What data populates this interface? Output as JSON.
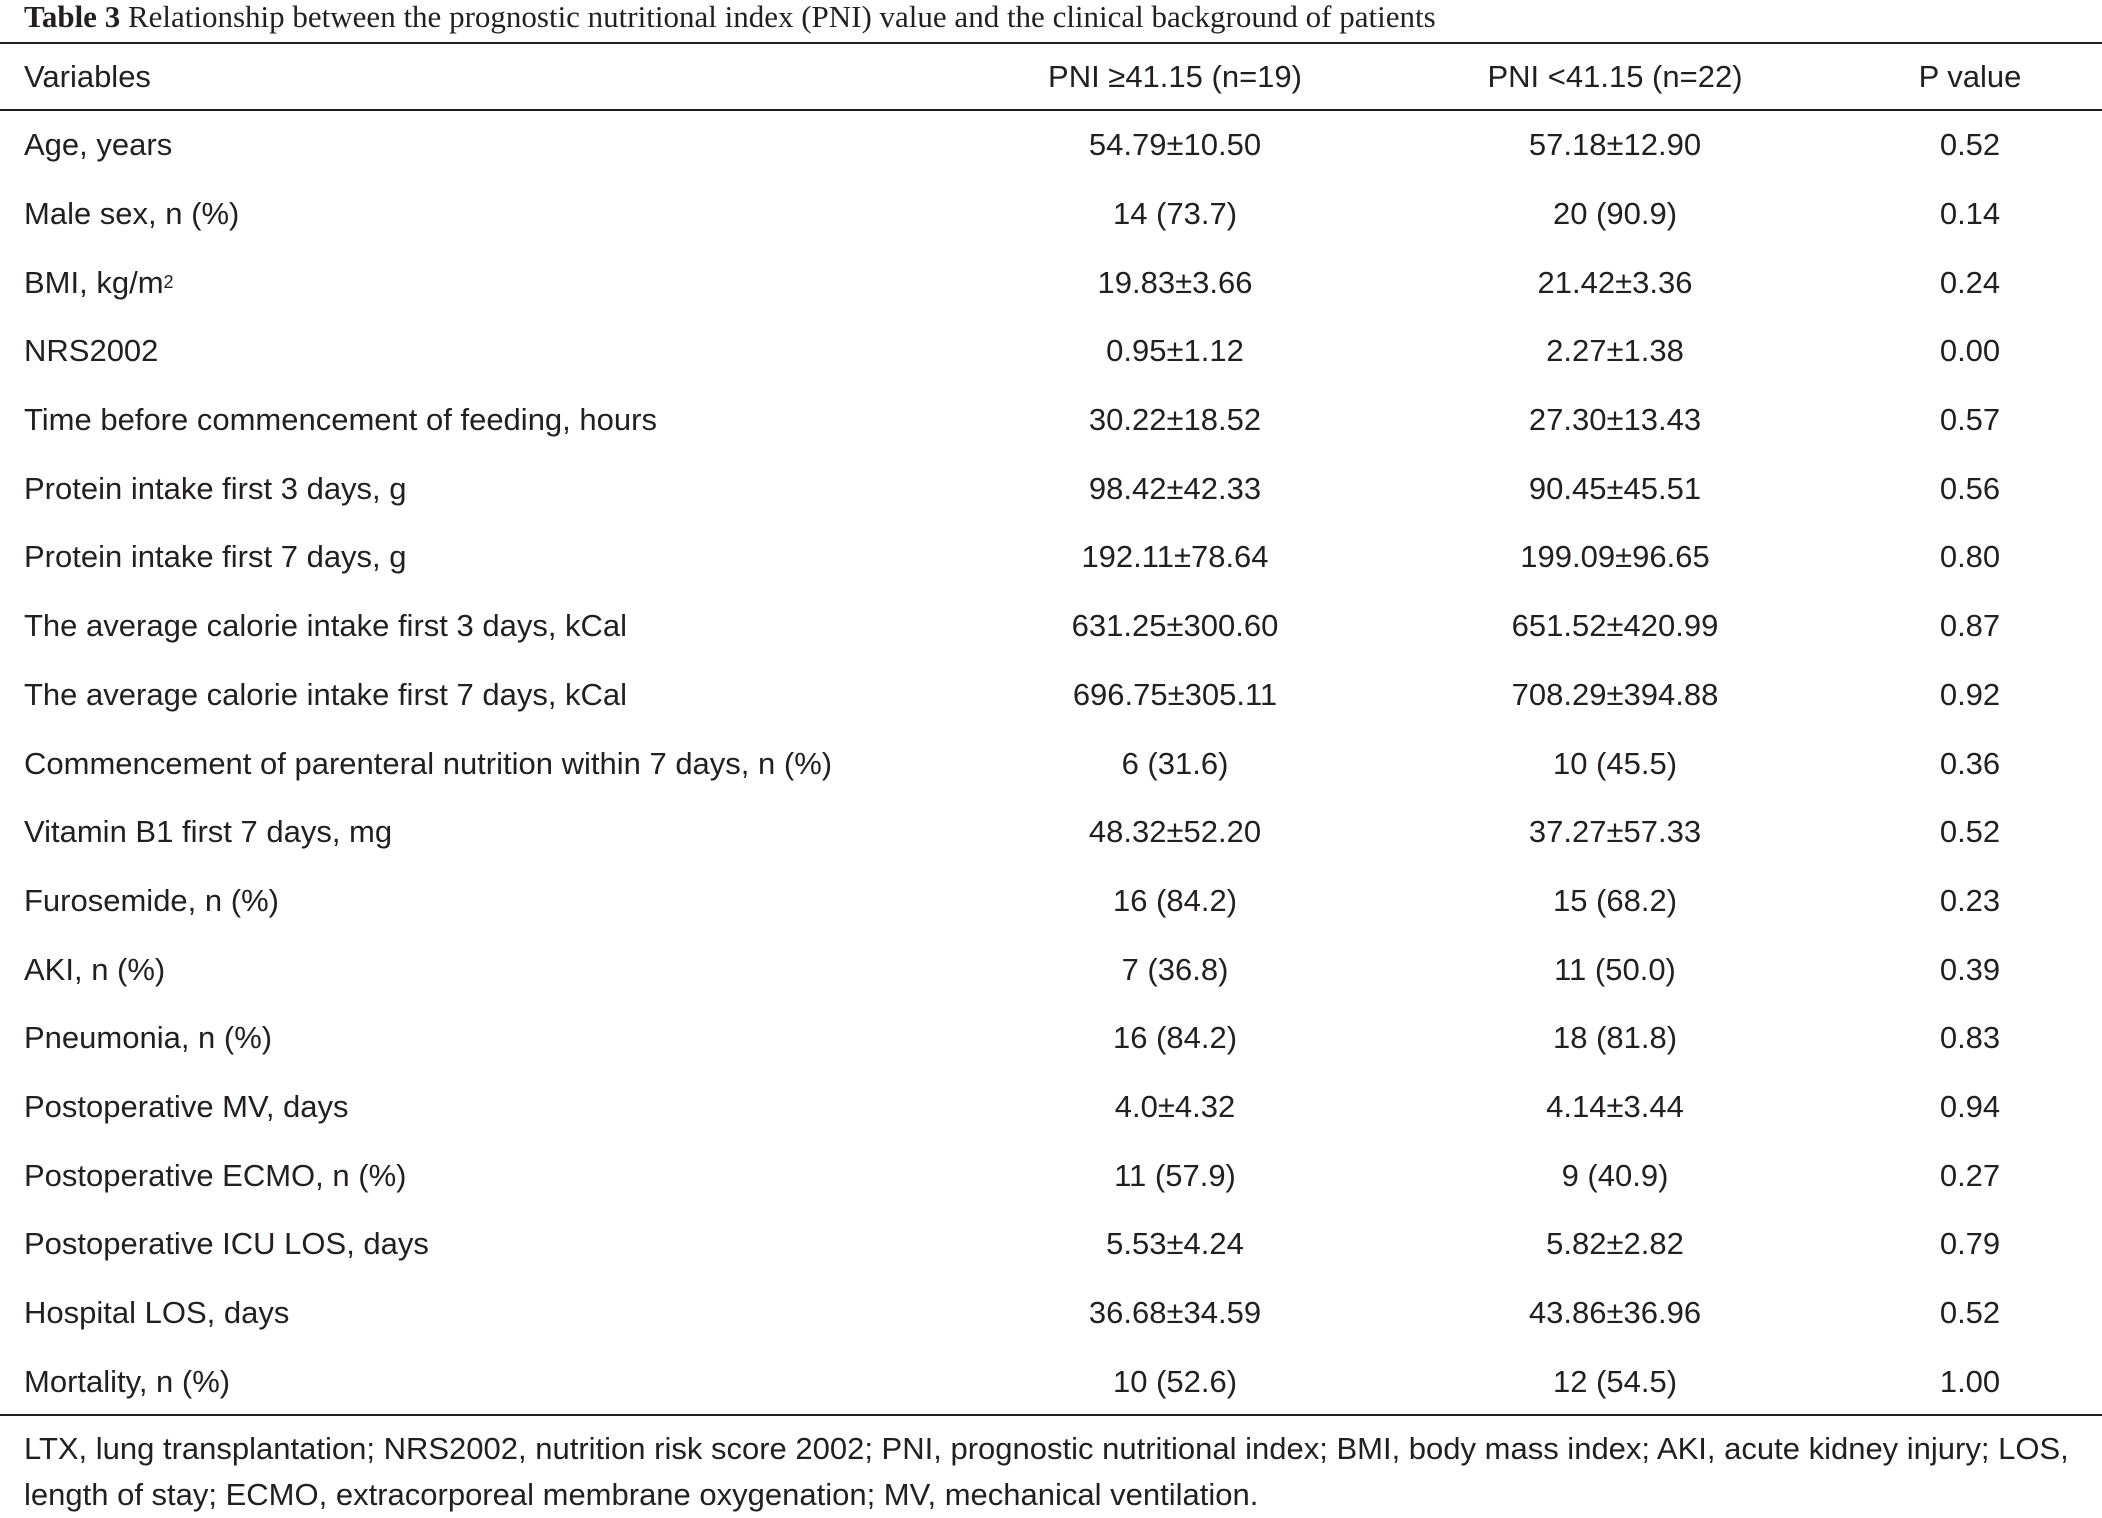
{
  "caption": {
    "label": "Table 3",
    "text": "Relationship between the prognostic nutritional index (PNI) value and the clinical background of patients"
  },
  "columns": [
    "Variables",
    "PNI ≥41.15 (n=19)",
    "PNI <41.15 (n=22)",
    "P value"
  ],
  "rows": [
    {
      "variable": "Age, years",
      "high": "54.79±10.50",
      "low": "57.18±12.90",
      "p": "0.52"
    },
    {
      "variable": "Male sex, n (%)",
      "high": "14 (73.7)",
      "low": "20 (90.9)",
      "p": "0.14"
    },
    {
      "variable": "BMI, kg/m",
      "sup": "2",
      "high": "19.83±3.66",
      "low": "21.42±3.36",
      "p": "0.24"
    },
    {
      "variable": "NRS2002",
      "high": "0.95±1.12",
      "low": "2.27±1.38",
      "p": "0.00"
    },
    {
      "variable": "Time before commencement of feeding, hours",
      "high": "30.22±18.52",
      "low": "27.30±13.43",
      "p": "0.57"
    },
    {
      "variable": "Protein intake first 3 days, g",
      "high": "98.42±42.33",
      "low": "90.45±45.51",
      "p": "0.56"
    },
    {
      "variable": "Protein intake first 7 days, g",
      "high": "192.11±78.64",
      "low": "199.09±96.65",
      "p": "0.80"
    },
    {
      "variable": "The average calorie intake first 3 days, kCal",
      "high": "631.25±300.60",
      "low": "651.52±420.99",
      "p": "0.87"
    },
    {
      "variable": "The average calorie intake first 7 days, kCal",
      "high": "696.75±305.11",
      "low": "708.29±394.88",
      "p": "0.92"
    },
    {
      "variable": "Commencement of parenteral nutrition within 7 days, n (%)",
      "high": "6 (31.6)",
      "low": "10 (45.5)",
      "p": "0.36"
    },
    {
      "variable": "Vitamin B1 first 7 days, mg",
      "high": "48.32±52.20",
      "low": "37.27±57.33",
      "p": "0.52"
    },
    {
      "variable": "Furosemide, n (%)",
      "high": "16 (84.2)",
      "low": "15 (68.2)",
      "p": "0.23"
    },
    {
      "variable": "AKI, n (%)",
      "high": "7 (36.8)",
      "low": "11 (50.0)",
      "p": "0.39"
    },
    {
      "variable": "Pneumonia, n (%)",
      "high": "16 (84.2)",
      "low": "18 (81.8)",
      "p": "0.83"
    },
    {
      "variable": "Postoperative MV, days",
      "high": "4.0±4.32",
      "low": "4.14±3.44",
      "p": "0.94"
    },
    {
      "variable": "Postoperative ECMO, n (%)",
      "high": "11 (57.9)",
      "low": "9 (40.9)",
      "p": "0.27"
    },
    {
      "variable": "Postoperative ICU LOS, days",
      "high": "5.53±4.24",
      "low": "5.82±2.82",
      "p": "0.79"
    },
    {
      "variable": "Hospital LOS, days",
      "high": "36.68±34.59",
      "low": "43.86±36.96",
      "p": "0.52"
    },
    {
      "variable": "Mortality, n (%)",
      "high": "10 (52.6)",
      "low": "12 (54.5)",
      "p": "1.00"
    }
  ],
  "footnote": "LTX, lung transplantation; NRS2002, nutrition risk score 2002; PNI, prognostic nutritional index; BMI, body mass index; AKI, acute kidney injury; LOS, length of stay; ECMO, extracorporeal membrane oxygenation; MV, mechanical ventilation."
}
